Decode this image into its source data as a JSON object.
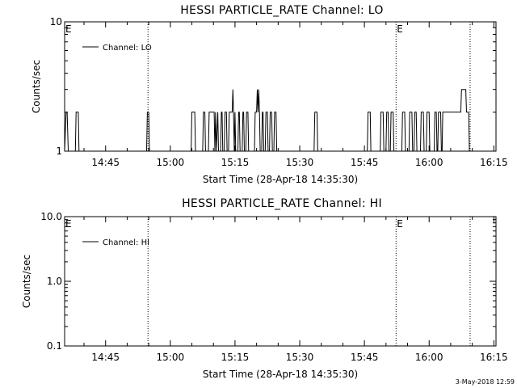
{
  "footer": {
    "timestamp": "3-May-2018 12:59"
  },
  "chart_data": [
    {
      "type": "line",
      "title": "HESSI PARTICLE_RATE Channel: LO",
      "xlabel": "Start Time (28-Apr-18 14:35:30)",
      "ylabel": "Counts/sec",
      "y_scale": "log",
      "ylim": [
        1,
        10
      ],
      "y_ticks": [
        {
          "value": 1,
          "label": "1"
        },
        {
          "value": 10,
          "label": "10"
        }
      ],
      "xlim": [
        "14:35:30",
        "16:15:30"
      ],
      "x_ticks": [
        "14:45",
        "15:00",
        "15:15",
        "15:30",
        "15:45",
        "16:00",
        "16:15"
      ],
      "legend": {
        "placement": "top-left",
        "entries": [
          "Channel: LO"
        ]
      },
      "series": [
        {
          "name": "Channel: LO",
          "x": [
            "14:35:30",
            "14:35:50",
            "14:36:05",
            "14:36:20",
            "14:36:40",
            "14:38:00",
            "14:38:10",
            "14:38:40",
            "14:38:50",
            "14:54:30",
            "14:54:40",
            "14:55:00",
            "14:55:10",
            "15:04:50",
            "15:05:00",
            "15:05:40",
            "15:05:50",
            "15:07:30",
            "15:07:40",
            "15:08:00",
            "15:08:10",
            "15:08:50",
            "15:09:00",
            "15:10:10",
            "15:10:20",
            "15:10:30",
            "15:10:40",
            "15:11:00",
            "15:11:10",
            "15:11:40",
            "15:11:50",
            "15:12:00",
            "15:12:10",
            "15:12:30",
            "15:12:40",
            "15:13:00",
            "15:13:10",
            "15:13:30",
            "15:13:40",
            "15:14:20",
            "15:14:30",
            "15:14:40",
            "15:14:50",
            "15:15:00",
            "15:15:10",
            "15:15:40",
            "15:15:50",
            "15:16:00",
            "15:16:10",
            "15:16:40",
            "15:16:50",
            "15:17:00",
            "15:17:10",
            "15:17:30",
            "15:17:40",
            "15:18:00",
            "15:18:10",
            "15:19:30",
            "15:19:40",
            "15:20:00",
            "15:20:10",
            "15:20:20",
            "15:20:30",
            "15:20:40",
            "15:20:50",
            "15:21:10",
            "15:21:20",
            "15:21:30",
            "15:21:40",
            "15:22:00",
            "15:22:10",
            "15:22:30",
            "15:22:40",
            "15:23:00",
            "15:23:10",
            "15:23:30",
            "15:23:40",
            "15:24:00",
            "15:24:10",
            "15:24:30",
            "15:24:40",
            "15:33:20",
            "15:33:30",
            "15:34:00",
            "15:34:10",
            "15:45:40",
            "15:45:50",
            "15:46:20",
            "15:46:30",
            "15:48:40",
            "15:48:50",
            "15:49:20",
            "15:49:30",
            "15:50:00",
            "15:50:10",
            "15:50:30",
            "15:50:40",
            "15:51:00",
            "15:51:10",
            "15:51:40",
            "15:51:50",
            "15:53:40",
            "15:53:50",
            "15:54:20",
            "15:54:30",
            "15:55:20",
            "15:55:30",
            "15:56:00",
            "15:56:10",
            "15:56:30",
            "15:56:40",
            "15:57:00",
            "15:57:10",
            "15:58:00",
            "15:58:10",
            "15:58:40",
            "15:58:50",
            "15:59:20",
            "15:59:30",
            "16:00:00",
            "16:00:10",
            "16:01:10",
            "16:01:20",
            "16:01:40",
            "16:01:50",
            "16:02:00",
            "16:02:10",
            "16:02:40",
            "16:02:50",
            "16:03:00",
            "16:03:10",
            "16:03:40",
            "16:03:50",
            "16:04:00",
            "16:04:10",
            "16:05:50",
            "16:06:00",
            "16:06:40",
            "16:06:50",
            "16:07:20",
            "16:07:30",
            "16:08:30",
            "16:08:40",
            "16:09:10",
            "16:09:20",
            "16:09:40",
            "16:09:50"
          ],
          "y": [
            1,
            2,
            2,
            1,
            1,
            1,
            2,
            2,
            1,
            1,
            2,
            2,
            1,
            1,
            2,
            2,
            1,
            1,
            2,
            2,
            1,
            1,
            2,
            2,
            1,
            2,
            1,
            2,
            1,
            1,
            2,
            2,
            1,
            1,
            2,
            2,
            1,
            1,
            2,
            2,
            3,
            2,
            1,
            2,
            1,
            1,
            2,
            2,
            1,
            1,
            2,
            2,
            1,
            1,
            2,
            2,
            1,
            1,
            2,
            2,
            3,
            2,
            3,
            2,
            1,
            1,
            2,
            2,
            1,
            1,
            2,
            2,
            1,
            1,
            2,
            2,
            1,
            1,
            2,
            2,
            1,
            1,
            2,
            2,
            1,
            1,
            2,
            2,
            1,
            1,
            2,
            2,
            1,
            1,
            2,
            2,
            1,
            1,
            2,
            2,
            1,
            1,
            2,
            2,
            1,
            1,
            2,
            2,
            1,
            1,
            2,
            2,
            1,
            1,
            2,
            2,
            1,
            1,
            2,
            2,
            1,
            1,
            2,
            2,
            1,
            1,
            2,
            2,
            1,
            1,
            2,
            2,
            2,
            2,
            2,
            2,
            2,
            2,
            2,
            2,
            3,
            3,
            2,
            2,
            1,
            1,
            1
          ]
        }
      ],
      "annotations": [
        {
          "type": "vline",
          "style": "dotted",
          "x": "14:54:50"
        },
        {
          "type": "vline",
          "style": "dotted",
          "x": "15:52:20",
          "label": "E"
        },
        {
          "type": "vline",
          "style": "dotted",
          "x": "16:09:30"
        },
        {
          "type": "text",
          "x": "14:35:30",
          "label": "E"
        }
      ]
    },
    {
      "type": "line",
      "title": "HESSI PARTICLE_RATE Channel: HI",
      "xlabel": "Start Time (28-Apr-18 14:35:30)",
      "ylabel": "Counts/sec",
      "y_scale": "log",
      "ylim": [
        0.1,
        10
      ],
      "y_ticks": [
        {
          "value": 0.1,
          "label": "0.1"
        },
        {
          "value": 1,
          "label": "1.0"
        },
        {
          "value": 10,
          "label": "10.0"
        }
      ],
      "xlim": [
        "14:35:30",
        "16:15:30"
      ],
      "x_ticks": [
        "14:45",
        "15:00",
        "15:15",
        "15:30",
        "15:45",
        "16:00",
        "16:15"
      ],
      "legend": {
        "placement": "top-left",
        "entries": [
          "Channel: HI"
        ]
      },
      "series": [
        {
          "name": "Channel: HI",
          "x": [],
          "y": []
        }
      ],
      "annotations": [
        {
          "type": "vline",
          "style": "dotted",
          "x": "14:54:50"
        },
        {
          "type": "vline",
          "style": "dotted",
          "x": "15:52:20",
          "label": "E"
        },
        {
          "type": "vline",
          "style": "dotted",
          "x": "16:09:30"
        },
        {
          "type": "text",
          "x": "14:35:30",
          "label": "E"
        }
      ]
    }
  ]
}
